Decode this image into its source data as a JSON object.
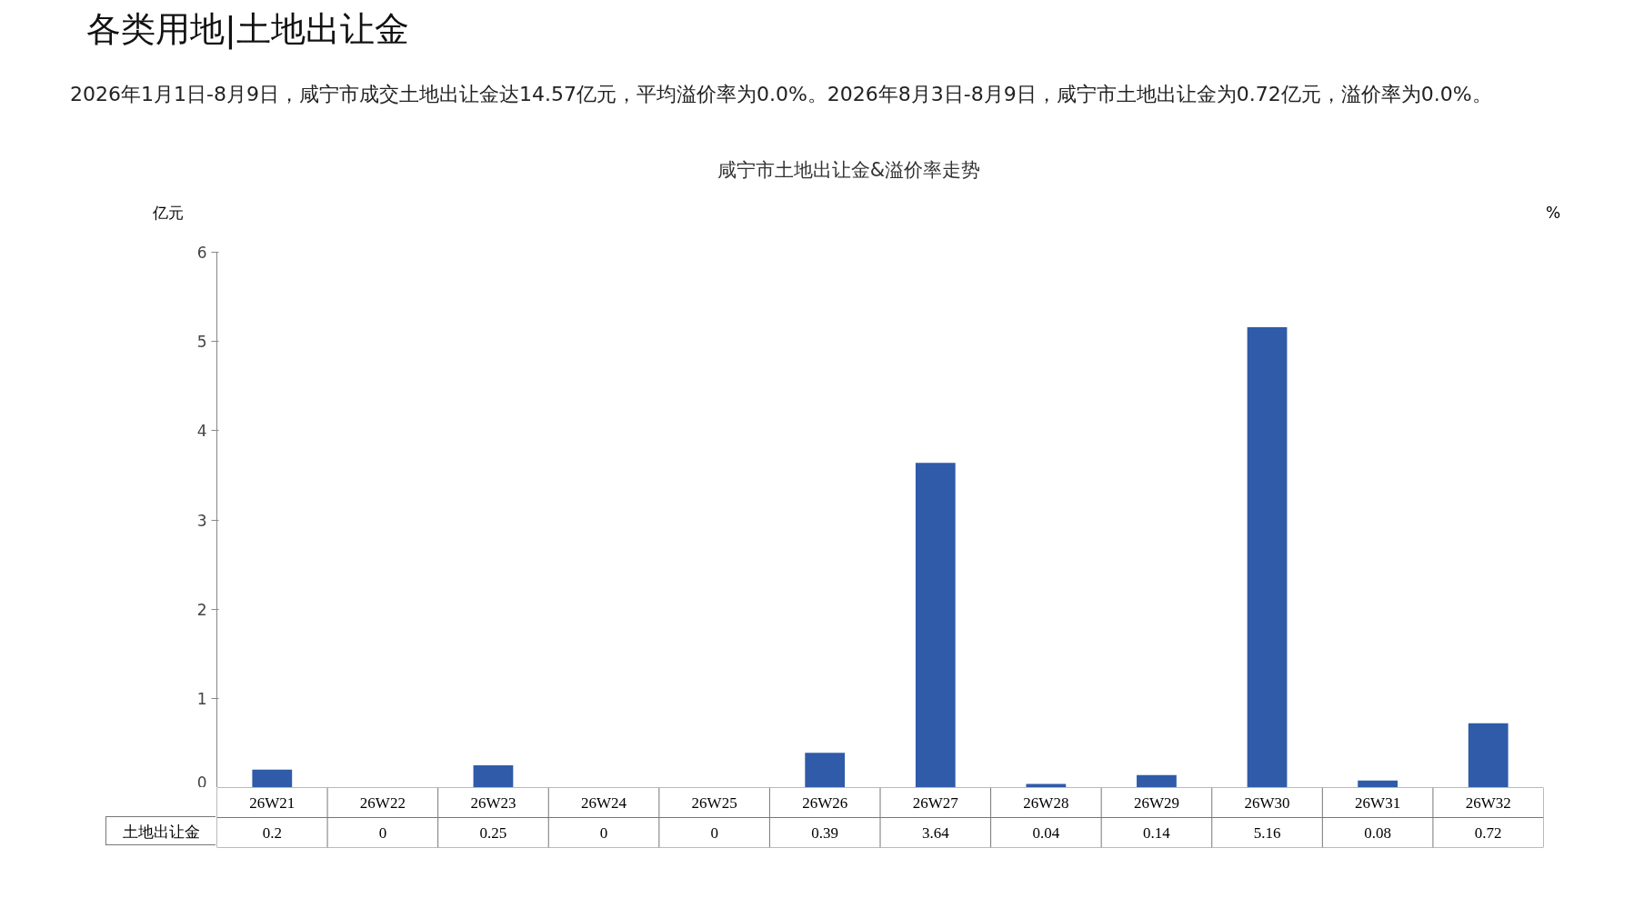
{
  "chart_data": {
    "type": "bar",
    "title": "咸宁市土地出让金&溢价率走势",
    "ylabel": "亿元",
    "y2label": "%",
    "annotations": [
      "各类用地|土地出让金",
      "2026年1月1日-8月9日，咸宁市成交土地出让金达14.57亿元，平均溢价率为0.0%。2026年8月3日-8月9日，咸宁市土地出让金为0.72亿元，溢价率为0.0%。"
    ],
    "categories": [
      "26W21",
      "26W22",
      "26W23",
      "26W24",
      "26W25",
      "26W26",
      "26W27",
      "26W28",
      "26W29",
      "26W30",
      "26W31",
      "26W32"
    ],
    "series": [
      {
        "name": "土地出让金",
        "color": "#2f5ba8",
        "values": [
          0.2,
          0,
          0.25,
          0,
          0,
          0.39,
          3.64,
          0.04,
          0.14,
          5.16,
          0.08,
          0.72
        ]
      }
    ],
    "ylim": [
      0,
      6
    ],
    "yticks": [
      0,
      1,
      2,
      3,
      4,
      5,
      6
    ],
    "data_labels": true
  }
}
